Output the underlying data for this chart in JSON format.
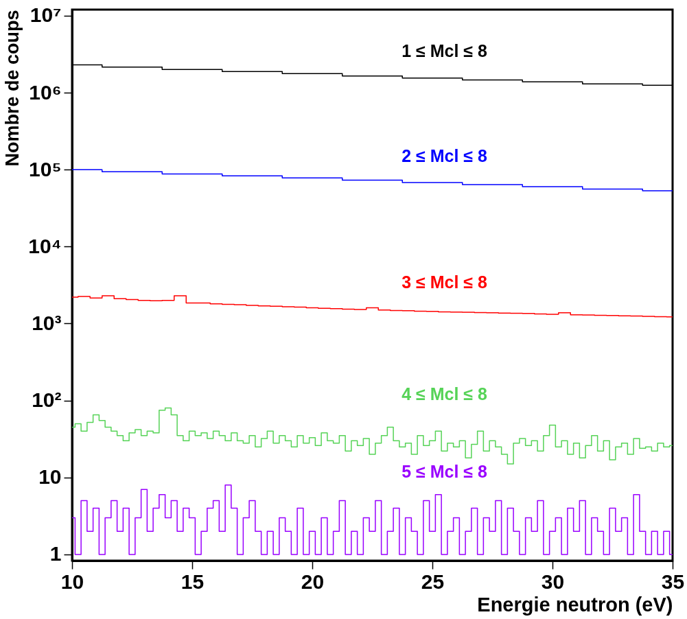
{
  "chart_data": {
    "type": "step",
    "xlabel": "Energie neutron (eV)",
    "ylabel": "Nombre de coups",
    "log": "y",
    "grid": false,
    "xlim": [
      10,
      35
    ],
    "xticks": [
      10,
      15,
      20,
      25,
      30,
      35
    ],
    "ylim": [
      0.83,
      12000000
    ],
    "yticks": [
      1,
      10,
      {
        "value": 100,
        "label": "10²"
      },
      {
        "value": 1000,
        "label": "10³"
      },
      {
        "value": 10000,
        "label": "10⁴"
      },
      {
        "value": 100000,
        "label": "10⁵"
      },
      {
        "value": 1000000,
        "label": "10⁶"
      },
      {
        "value": 10000000,
        "label": "10⁷"
      }
    ],
    "series": [
      {
        "name": "1 ≤ Mcl ≤ 8",
        "color": "#000000",
        "x": [
          10,
          12.5,
          15,
          17.5,
          20,
          22.5,
          25,
          27.5,
          30,
          32.5,
          35
        ],
        "values": [
          2300000,
          2150000,
          2000000,
          1880000,
          1770000,
          1650000,
          1550000,
          1460000,
          1380000,
          1300000,
          1250000
        ]
      },
      {
        "name": "2 ≤ Mcl ≤ 8",
        "color": "#0000ff",
        "x": [
          10,
          12.5,
          15,
          17.5,
          20,
          22.5,
          25,
          27.5,
          30,
          32.5,
          35
        ],
        "values": [
          100000,
          94000,
          88000,
          83000,
          78000,
          73000,
          68000,
          64000,
          60000,
          56000,
          53000
        ]
      },
      {
        "name": "3 ≤ Mcl ≤ 8",
        "color": "#ff0000",
        "x": [
          10,
          10.5,
          11,
          11.5,
          12,
          12.5,
          13,
          13.5,
          14,
          14.5,
          15,
          15.5,
          16,
          16.5,
          17,
          17.5,
          18,
          18.5,
          19,
          19.5,
          20,
          20.5,
          21,
          21.5,
          22,
          22.5,
          23,
          23.5,
          24,
          24.5,
          25,
          25.5,
          26,
          26.5,
          27,
          27.5,
          28,
          28.5,
          29,
          29.5,
          30,
          30.5,
          31,
          31.5,
          32,
          32.5,
          33,
          33.5,
          34,
          34.5,
          35
        ],
        "values": [
          2200,
          2250,
          2150,
          2300,
          2100,
          2050,
          2000,
          1980,
          2000,
          2300,
          1850,
          1850,
          1800,
          1780,
          1760,
          1720,
          1700,
          1680,
          1650,
          1640,
          1600,
          1580,
          1560,
          1540,
          1520,
          1600,
          1500,
          1480,
          1470,
          1450,
          1440,
          1420,
          1410,
          1400,
          1390,
          1380,
          1370,
          1360,
          1350,
          1330,
          1320,
          1380,
          1300,
          1290,
          1280,
          1270,
          1260,
          1250,
          1240,
          1230,
          1220
        ]
      },
      {
        "name": "4 ≤ Mcl ≤ 8",
        "color": "#56d357",
        "x": [
          10,
          10.25,
          10.5,
          10.75,
          11,
          11.25,
          11.5,
          11.75,
          12,
          12.25,
          12.5,
          12.75,
          13,
          13.25,
          13.5,
          13.75,
          14,
          14.25,
          14.5,
          14.75,
          15,
          15.25,
          15.5,
          15.75,
          16,
          16.25,
          16.5,
          16.75,
          17,
          17.25,
          17.5,
          17.75,
          18,
          18.25,
          18.5,
          18.75,
          19,
          19.25,
          19.5,
          19.75,
          20,
          20.25,
          20.5,
          20.75,
          21,
          21.25,
          21.5,
          21.75,
          22,
          22.25,
          22.5,
          22.75,
          23,
          23.25,
          23.5,
          23.75,
          24,
          24.25,
          24.5,
          24.75,
          25,
          25.25,
          25.5,
          25.75,
          26,
          26.25,
          26.5,
          26.75,
          27,
          27.25,
          27.5,
          27.75,
          28,
          28.25,
          28.5,
          28.75,
          29,
          29.25,
          29.5,
          29.75,
          30,
          30.25,
          30.5,
          30.75,
          31,
          31.25,
          31.5,
          31.75,
          32,
          32.25,
          32.5,
          32.75,
          33,
          33.25,
          33.5,
          33.75,
          34,
          34.25,
          34.5,
          34.75,
          35
        ],
        "values": [
          45,
          50,
          40,
          52,
          65,
          55,
          45,
          40,
          35,
          30,
          38,
          42,
          35,
          40,
          38,
          75,
          80,
          65,
          35,
          30,
          40,
          35,
          38,
          32,
          40,
          35,
          30,
          38,
          30,
          28,
          35,
          25,
          32,
          40,
          28,
          35,
          30,
          25,
          35,
          28,
          33,
          26,
          38,
          30,
          28,
          35,
          22,
          30,
          26,
          32,
          20,
          28,
          35,
          45,
          30,
          25,
          28,
          20,
          35,
          26,
          30,
          40,
          22,
          28,
          25,
          30,
          18,
          27,
          40,
          22,
          30,
          25,
          20,
          15,
          28,
          32,
          26,
          30,
          22,
          35,
          48,
          25,
          30,
          20,
          28,
          18,
          26,
          35,
          22,
          30,
          17,
          25,
          28,
          20,
          32,
          24,
          25,
          22,
          28,
          25,
          26
        ]
      },
      {
        "name": "5 ≤ Mcl ≤ 8",
        "color": "#9900ff",
        "x": [
          10,
          10.25,
          10.5,
          10.75,
          11,
          11.25,
          11.5,
          11.75,
          12,
          12.25,
          12.5,
          12.75,
          13,
          13.25,
          13.5,
          13.75,
          14,
          14.25,
          14.5,
          14.75,
          15,
          15.25,
          15.5,
          15.75,
          16,
          16.25,
          16.5,
          16.75,
          17,
          17.25,
          17.5,
          17.75,
          18,
          18.25,
          18.5,
          18.75,
          19,
          19.25,
          19.5,
          19.75,
          20,
          20.25,
          20.5,
          20.75,
          21,
          21.25,
          21.5,
          21.75,
          22,
          22.25,
          22.5,
          22.75,
          23,
          23.25,
          23.5,
          23.75,
          24,
          24.25,
          24.5,
          24.75,
          25,
          25.25,
          25.5,
          25.75,
          26,
          26.25,
          26.5,
          26.75,
          27,
          27.25,
          27.5,
          27.75,
          28,
          28.25,
          28.5,
          28.75,
          29,
          29.25,
          29.5,
          29.75,
          30,
          30.25,
          30.5,
          30.75,
          31,
          31.25,
          31.5,
          31.75,
          32,
          32.25,
          32.5,
          32.75,
          33,
          33.25,
          33.5,
          33.75,
          34,
          34.25,
          34.5,
          34.75,
          35
        ],
        "values": [
          3,
          1,
          5,
          2,
          4,
          1,
          3,
          5,
          2,
          4,
          1,
          3,
          7,
          2,
          4,
          6,
          3,
          5,
          2,
          4,
          3,
          1,
          2,
          4,
          5,
          2,
          8,
          4,
          1,
          3,
          5,
          2,
          1,
          2,
          1,
          3,
          2,
          1,
          4,
          1,
          2,
          1,
          3,
          1,
          2,
          5,
          1,
          2,
          1,
          3,
          2,
          5,
          1,
          2,
          4,
          1,
          3,
          2,
          1,
          5,
          2,
          6,
          1,
          2,
          3,
          1,
          2,
          4,
          1,
          3,
          2,
          5,
          1,
          4,
          2,
          1,
          3,
          2,
          5,
          1,
          2,
          3,
          1,
          4,
          2,
          5,
          1,
          3,
          2,
          1,
          4,
          2,
          3,
          1,
          6,
          2,
          1,
          2,
          1,
          2,
          1
        ]
      }
    ]
  }
}
